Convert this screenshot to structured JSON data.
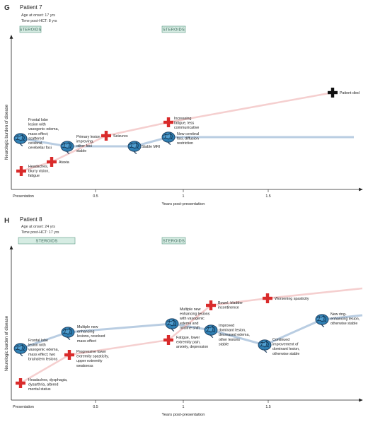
{
  "panels": [
    {
      "letter": "G",
      "title": "Patient 7",
      "age": "Age at onset: 17 yrs",
      "time_hct": "Time post-HCT: 8 yrs",
      "steroids": [
        "STEROIDS",
        "STEROIDS"
      ],
      "ylabel": "Neurologic burden of disease",
      "xlabel": "Years post-presentation",
      "ticks": [
        "Presentation",
        "0.5",
        "1",
        "1.5"
      ],
      "annotations": [
        [
          "Frontal lobe",
          "lesion with",
          "vasogenic edema,",
          "mass effect;",
          "scattered",
          "cerebral,",
          "cerebellar foci"
        ],
        [
          "Headaches,",
          "blurry vision,",
          "fatigue"
        ],
        [
          "Ataxia"
        ],
        [
          "Primary lesion",
          "improving,",
          "other foci",
          "stable"
        ],
        [
          "Seizures"
        ],
        [
          "Stable MRI"
        ],
        [
          "Increasing",
          "fatigue, less",
          "communicative"
        ],
        [
          "New cerebral",
          "foci, diffusion",
          "restriction"
        ],
        [
          "Patient died"
        ]
      ]
    },
    {
      "letter": "H",
      "title": "Patient 8",
      "age": "Age at onset: 24 yrs",
      "time_hct": "Time post-HCT: 17 yrs",
      "steroids": [
        "STEROIDS",
        "STEROIDS"
      ],
      "ylabel": "Neurologic burden of disease",
      "xlabel": "Years post-presentation",
      "ticks": [
        "Presentation",
        "0.5",
        "1",
        "1.5"
      ],
      "annotations": [
        [
          "Frontal lobe",
          "lesion with",
          "vasogenic edema,",
          "mass effect; two",
          "brainstem lesions"
        ],
        [
          "Headaches, dysphagia,",
          "dysarthria, altered",
          "mental status"
        ],
        [
          "Multiple new",
          "enhancing",
          "lesions, resolved",
          "mass effect"
        ],
        [
          "Progressive lower",
          "extremity spasticity,",
          "upper extremity",
          "weakness"
        ],
        [
          "Multiple new",
          "enhancing lesions",
          "with vasogenic",
          "edema and",
          "midline shift"
        ],
        [
          "Fatigue, lower",
          "extremity pain,",
          "anxiety, depression"
        ],
        [
          "Bowel, bladder",
          "incontinence"
        ],
        [
          "Improved",
          "dominant lesion,",
          "decreased edema,",
          "other lesions",
          "stable"
        ],
        [
          "Worsening spasticity"
        ],
        [
          "Continued",
          "improvement of",
          "dominant lesion,",
          "otherwise stable"
        ],
        [
          "New ring-",
          "enhancing lesion,",
          "otherwise stable"
        ]
      ]
    }
  ],
  "colors": {
    "blue_line": "#b9cde2",
    "pink_line": "#f5cfcf",
    "red_cross": "#d92b2b",
    "death_cross": "#111111",
    "steroid_fill": "#d6ece3"
  },
  "icons": [
    "brain-icon",
    "red-cross-icon",
    "black-cross-icon"
  ]
}
